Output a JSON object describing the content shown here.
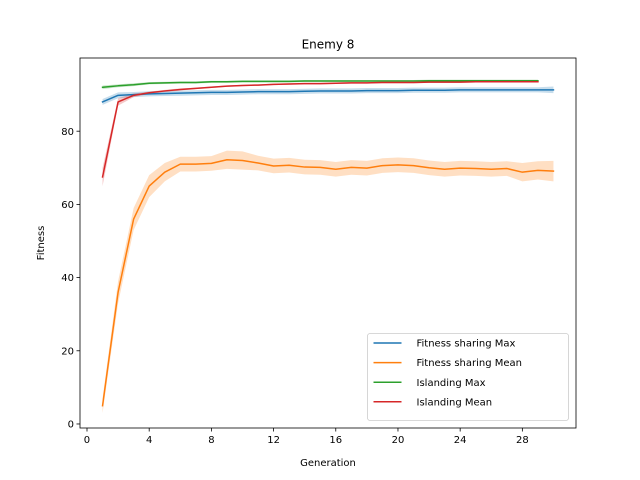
{
  "chart_data": {
    "type": "line",
    "title": "Enemy 8",
    "xlabel": "Generation",
    "ylabel": "Fitness",
    "xlim": [
      -0.45,
      31.45
    ],
    "ylim": [
      -1.1,
      100
    ],
    "xticks": [
      0,
      4,
      8,
      12,
      16,
      20,
      24,
      28
    ],
    "yticks": [
      0,
      20,
      40,
      60,
      80
    ],
    "grid": false,
    "legend_position": "lower-right",
    "series": [
      {
        "name": "Fitness sharing Max",
        "color": "#1f77b4",
        "x": [
          1,
          2,
          3,
          4,
          5,
          6,
          7,
          8,
          9,
          10,
          11,
          12,
          13,
          14,
          15,
          16,
          17,
          18,
          19,
          20,
          21,
          22,
          23,
          24,
          25,
          26,
          27,
          28,
          29,
          30
        ],
        "y": [
          88.0,
          89.8,
          90.0,
          90.2,
          90.3,
          90.4,
          90.5,
          90.6,
          90.6,
          90.7,
          90.8,
          90.8,
          90.8,
          90.9,
          91.0,
          91.0,
          91.0,
          91.1,
          91.1,
          91.1,
          91.2,
          91.2,
          91.2,
          91.3,
          91.3,
          91.3,
          91.3,
          91.3,
          91.3,
          91.3
        ],
        "band": [
          0.8,
          0.8,
          0.7,
          0.7,
          0.7,
          0.7,
          0.7,
          0.7,
          0.7,
          0.7,
          0.7,
          0.7,
          0.7,
          0.7,
          0.7,
          0.7,
          0.7,
          0.7,
          0.7,
          0.7,
          0.7,
          0.7,
          0.7,
          0.7,
          0.7,
          0.7,
          0.7,
          0.7,
          0.7,
          0.9
        ]
      },
      {
        "name": "Fitness sharing Mean",
        "color": "#ff7f0e",
        "x": [
          1,
          2,
          3,
          4,
          5,
          6,
          7,
          8,
          9,
          10,
          11,
          12,
          13,
          14,
          15,
          16,
          17,
          18,
          19,
          20,
          21,
          22,
          23,
          24,
          25,
          26,
          27,
          28,
          29,
          30
        ],
        "y": [
          5.0,
          36.0,
          56.0,
          65.0,
          68.8,
          71.0,
          71.0,
          71.2,
          72.2,
          72.0,
          71.3,
          70.5,
          70.7,
          70.2,
          70.1,
          69.6,
          70.1,
          69.9,
          70.6,
          70.8,
          70.6,
          70.0,
          69.6,
          69.9,
          69.8,
          69.6,
          69.8,
          68.8,
          69.3,
          69.1
        ],
        "band": [
          2.0,
          3.0,
          3.0,
          3.0,
          2.5,
          2.0,
          2.0,
          2.0,
          2.5,
          2.5,
          2.0,
          2.0,
          2.0,
          2.0,
          2.0,
          2.0,
          2.0,
          2.0,
          2.0,
          2.0,
          2.0,
          2.0,
          2.0,
          2.0,
          2.0,
          2.0,
          2.0,
          2.5,
          2.5,
          2.8
        ]
      },
      {
        "name": "Islanding Max",
        "color": "#2ca02c",
        "x": [
          1,
          2,
          3,
          4,
          5,
          6,
          7,
          8,
          9,
          10,
          11,
          12,
          13,
          14,
          15,
          16,
          17,
          18,
          19,
          20,
          21,
          22,
          23,
          24,
          25,
          26,
          27,
          28,
          29
        ],
        "y": [
          92.0,
          92.4,
          92.7,
          93.1,
          93.2,
          93.3,
          93.3,
          93.5,
          93.5,
          93.6,
          93.6,
          93.6,
          93.6,
          93.7,
          93.7,
          93.7,
          93.7,
          93.7,
          93.7,
          93.7,
          93.7,
          93.8,
          93.8,
          93.8,
          93.8,
          93.8,
          93.8,
          93.8,
          93.8
        ],
        "band": [
          0.5,
          0.4,
          0.4,
          0.3,
          0.3,
          0.3,
          0.3,
          0.3,
          0.3,
          0.3,
          0.3,
          0.3,
          0.3,
          0.3,
          0.3,
          0.3,
          0.3,
          0.3,
          0.3,
          0.3,
          0.3,
          0.3,
          0.3,
          0.3,
          0.3,
          0.3,
          0.3,
          0.3,
          0.3
        ]
      },
      {
        "name": "Islanding Mean",
        "color": "#d62728",
        "x": [
          1,
          2,
          3,
          4,
          5,
          6,
          7,
          8,
          9,
          10,
          11,
          12,
          13,
          14,
          15,
          16,
          17,
          18,
          19,
          20,
          21,
          22,
          23,
          24,
          25,
          26,
          27,
          28,
          29
        ],
        "y": [
          67.5,
          88.0,
          89.8,
          90.5,
          91.0,
          91.4,
          91.7,
          92.0,
          92.3,
          92.5,
          92.6,
          92.8,
          92.9,
          93.0,
          93.0,
          93.1,
          93.2,
          93.2,
          93.3,
          93.3,
          93.3,
          93.4,
          93.4,
          93.4,
          93.5,
          93.5,
          93.5,
          93.5,
          93.5
        ],
        "band": [
          2.5,
          1.0,
          0.5,
          0.3,
          0.3,
          0.3,
          0.2,
          0.2,
          0.2,
          0.2,
          0.2,
          0.2,
          0.2,
          0.2,
          0.2,
          0.2,
          0.2,
          0.2,
          0.2,
          0.2,
          0.2,
          0.2,
          0.2,
          0.2,
          0.2,
          0.2,
          0.2,
          0.2,
          0.2
        ]
      }
    ]
  }
}
